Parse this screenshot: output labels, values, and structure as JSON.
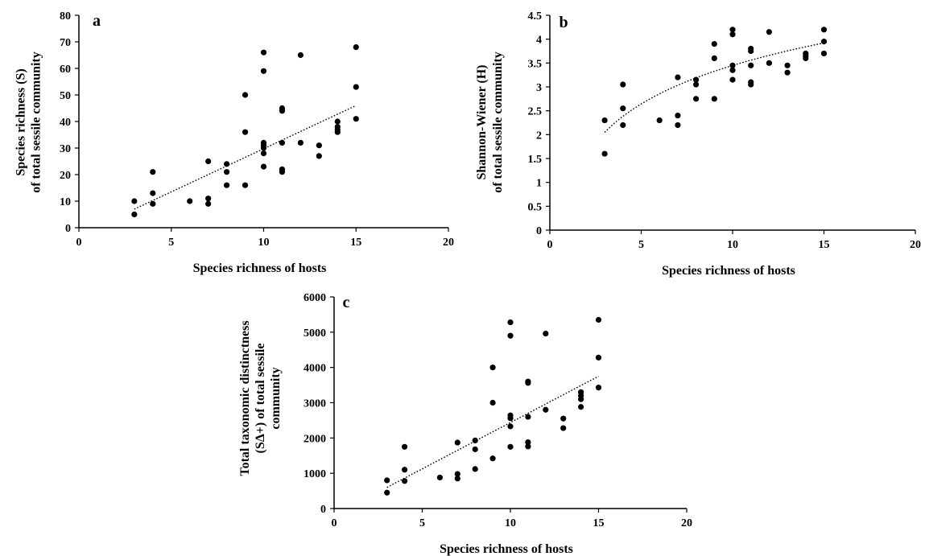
{
  "chart_data": [
    {
      "panel": "a",
      "type": "scatter",
      "xlabel": "Species richness of hosts",
      "ylabel_lines": [
        "Species richness (S)",
        "of total sessile community"
      ],
      "xlim": [
        0,
        20
      ],
      "ylim": [
        0,
        80
      ],
      "xticks": [
        0,
        5,
        10,
        15,
        20
      ],
      "yticks": [
        0,
        10,
        20,
        30,
        40,
        50,
        60,
        70,
        80
      ],
      "trendline": {
        "style": "dotted",
        "x": [
          3,
          15
        ],
        "y": [
          7,
          46
        ]
      },
      "points": [
        [
          3,
          5
        ],
        [
          3,
          10
        ],
        [
          4,
          9
        ],
        [
          4,
          13
        ],
        [
          4,
          21
        ],
        [
          6,
          10
        ],
        [
          7,
          9
        ],
        [
          7,
          11
        ],
        [
          7,
          25
        ],
        [
          8,
          16
        ],
        [
          8,
          21
        ],
        [
          8,
          24
        ],
        [
          9,
          16
        ],
        [
          9,
          36
        ],
        [
          9,
          50
        ],
        [
          10,
          23
        ],
        [
          10,
          28
        ],
        [
          10,
          30
        ],
        [
          10,
          31
        ],
        [
          10,
          32
        ],
        [
          10,
          59
        ],
        [
          10,
          66
        ],
        [
          11,
          21
        ],
        [
          11,
          22
        ],
        [
          11,
          32
        ],
        [
          11,
          44
        ],
        [
          11,
          45
        ],
        [
          12,
          32
        ],
        [
          12,
          65
        ],
        [
          13,
          27
        ],
        [
          13,
          31
        ],
        [
          14,
          36
        ],
        [
          14,
          37
        ],
        [
          14,
          38
        ],
        [
          14,
          40
        ],
        [
          15,
          41
        ],
        [
          15,
          53
        ],
        [
          15,
          68
        ]
      ]
    },
    {
      "panel": "b",
      "type": "scatter",
      "xlabel": "Species richness of hosts",
      "ylabel_lines": [
        "Shannon-Wiener (H)",
        "of total sessile community"
      ],
      "xlim": [
        0,
        20
      ],
      "ylim": [
        0,
        4.5
      ],
      "xticks": [
        0,
        5,
        10,
        15,
        20
      ],
      "yticks": [
        0,
        0.5,
        1,
        1.5,
        2,
        2.5,
        3,
        3.5,
        4,
        4.5
      ],
      "trendline": {
        "style": "dotted",
        "curve": "log",
        "x": [
          3,
          15
        ],
        "y": [
          2.05,
          3.92
        ]
      },
      "points": [
        [
          3,
          1.6
        ],
        [
          3,
          2.3
        ],
        [
          4,
          2.2
        ],
        [
          4,
          2.55
        ],
        [
          4,
          3.05
        ],
        [
          6,
          2.3
        ],
        [
          7,
          2.2
        ],
        [
          7,
          2.4
        ],
        [
          7,
          3.2
        ],
        [
          8,
          2.75
        ],
        [
          8,
          3.05
        ],
        [
          8,
          3.15
        ],
        [
          9,
          2.75
        ],
        [
          9,
          3.6
        ],
        [
          9,
          3.9
        ],
        [
          10,
          3.15
        ],
        [
          10,
          3.35
        ],
        [
          10,
          3.45
        ],
        [
          10,
          4.1
        ],
        [
          10,
          4.2
        ],
        [
          11,
          3.05
        ],
        [
          11,
          3.1
        ],
        [
          11,
          3.45
        ],
        [
          11,
          3.75
        ],
        [
          11,
          3.8
        ],
        [
          12,
          3.5
        ],
        [
          12,
          4.15
        ],
        [
          13,
          3.3
        ],
        [
          13,
          3.45
        ],
        [
          14,
          3.6
        ],
        [
          14,
          3.65
        ],
        [
          14,
          3.7
        ],
        [
          15,
          3.7
        ],
        [
          15,
          3.95
        ],
        [
          15,
          4.2
        ]
      ]
    },
    {
      "panel": "c",
      "type": "scatter",
      "xlabel": "Species richness of hosts",
      "ylabel_lines": [
        "Total taxonomic distinctness",
        "(SΔ+) of total sessile",
        "community"
      ],
      "xlim": [
        0,
        20
      ],
      "ylim": [
        0,
        6000
      ],
      "xticks": [
        0,
        5,
        10,
        15,
        20
      ],
      "yticks": [
        0,
        1000,
        2000,
        3000,
        4000,
        5000,
        6000
      ],
      "trendline": {
        "style": "dotted",
        "x": [
          3,
          15
        ],
        "y": [
          600,
          3750
        ]
      },
      "points": [
        [
          3,
          450
        ],
        [
          3,
          800
        ],
        [
          4,
          780
        ],
        [
          4,
          1100
        ],
        [
          4,
          1750
        ],
        [
          6,
          880
        ],
        [
          7,
          850
        ],
        [
          7,
          980
        ],
        [
          7,
          1870
        ],
        [
          8,
          1120
        ],
        [
          8,
          1680
        ],
        [
          8,
          1930
        ],
        [
          9,
          1420
        ],
        [
          9,
          3000
        ],
        [
          9,
          4000
        ],
        [
          10,
          1750
        ],
        [
          10,
          2330
        ],
        [
          10,
          2560
        ],
        [
          10,
          2640
        ],
        [
          10,
          4900
        ],
        [
          10,
          5280
        ],
        [
          11,
          1760
        ],
        [
          11,
          1880
        ],
        [
          11,
          2600
        ],
        [
          11,
          3560
        ],
        [
          11,
          3600
        ],
        [
          12,
          2800
        ],
        [
          12,
          4960
        ],
        [
          13,
          2280
        ],
        [
          13,
          2550
        ],
        [
          14,
          2880
        ],
        [
          14,
          3100
        ],
        [
          14,
          3200
        ],
        [
          14,
          3300
        ],
        [
          15,
          3430
        ],
        [
          15,
          4280
        ],
        [
          15,
          5350
        ]
      ]
    }
  ]
}
